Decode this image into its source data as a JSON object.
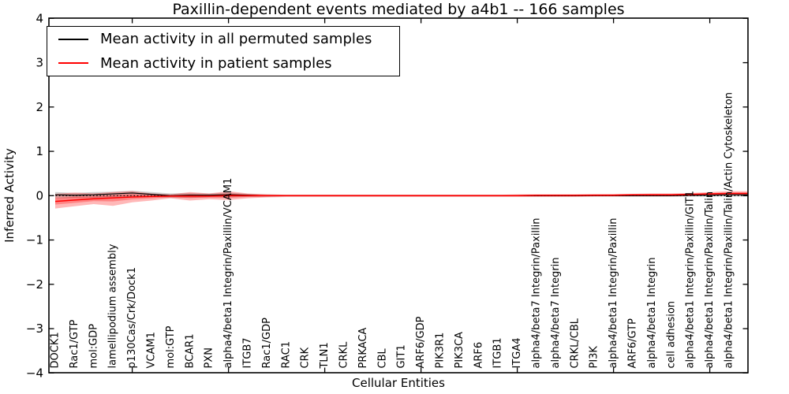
{
  "title": "Paxillin-dependent events mediated by a4b1 -- 166 samples",
  "chart_data": {
    "type": "line",
    "title": "Paxillin-dependent events mediated by a4b1 -- 166 samples",
    "xlabel": "Cellular Entities",
    "ylabel": "Inferred Activity",
    "ylim": [
      -4,
      4
    ],
    "grid": false,
    "legend_position": "upper left",
    "zero_line": {
      "style": "dotted",
      "color": "#000000",
      "y": 0
    },
    "yticks": {
      "values": [
        4,
        3,
        2,
        1,
        0,
        -1,
        -2,
        -3,
        -4
      ],
      "labels": [
        "4",
        "3",
        "2",
        "1",
        "0",
        "−1",
        "−2",
        "−3",
        "−4"
      ]
    },
    "xticks_major_values": [
      5,
      10,
      15,
      20,
      25,
      30,
      35
    ],
    "categories": [
      "DOCK1",
      "Rac1/GTP",
      "mol:GDP",
      "lamellipodium assembly",
      "p130Cas/Crk/Dock1",
      "VCAM1",
      "mol:GTP",
      "BCAR1",
      "PXN",
      "alpha4/beta1 Integrin/Paxillin/VCAM1",
      "ITGB7",
      "Rac1/GDP",
      "RAC1",
      "CRK",
      "TLN1",
      "CRKL",
      "PRKACA",
      "CBL",
      "GIT1",
      "ARF6/GDP",
      "PIK3R1",
      "PIK3CA",
      "ARF6",
      "ITGB1",
      "ITGA4",
      "alpha4/beta7 Integrin/Paxillin",
      "alpha4/beta7 Integrin",
      "CRKL/CBL",
      "PI3K",
      "alpha4/beta1 Integrin/Paxillin",
      "ARF6/GTP",
      "alpha4/beta1 Integrin",
      "cell adhesion",
      "alpha4/beta1 Integrin/Paxillin/GIT1",
      "alpha4/beta1 Integrin/Paxillin/Talin",
      "alpha4/beta1 Integrin/Paxillin/Talin/Actin Cytoskeleton"
    ],
    "series": [
      {
        "name": "Mean activity in all permuted samples",
        "color": "#000000",
        "line_width": 1.2,
        "band_color": "rgba(128,128,128,0.38)",
        "values": [
          0.02,
          0.01,
          0.02,
          0.04,
          0.06,
          0.03,
          0.0,
          0.01,
          0.01,
          0.02,
          0.01,
          0.0,
          0.0,
          0.0,
          0.0,
          0.0,
          0.0,
          0.0,
          0.0,
          0.0,
          0.0,
          0.0,
          0.0,
          0.0,
          0.0,
          0.0,
          0.0,
          0.0,
          0.0,
          0.0,
          0.0,
          0.0,
          0.0,
          0.01,
          0.01,
          0.02
        ],
        "band_upper": [
          0.08,
          0.06,
          0.08,
          0.09,
          0.11,
          0.08,
          0.05,
          0.06,
          0.05,
          0.07,
          0.04,
          0.03,
          0.02,
          0.02,
          0.02,
          0.02,
          0.02,
          0.02,
          0.02,
          0.02,
          0.02,
          0.02,
          0.02,
          0.02,
          0.02,
          0.02,
          0.02,
          0.02,
          0.02,
          0.02,
          0.02,
          0.02,
          0.02,
          0.03,
          0.03,
          0.04
        ],
        "band_lower": [
          -0.06,
          -0.05,
          -0.05,
          -0.03,
          -0.02,
          -0.03,
          -0.05,
          -0.05,
          -0.04,
          -0.04,
          -0.03,
          -0.03,
          -0.02,
          -0.02,
          -0.02,
          -0.02,
          -0.02,
          -0.02,
          -0.02,
          -0.02,
          -0.02,
          -0.02,
          -0.02,
          -0.02,
          -0.02,
          -0.02,
          -0.02,
          -0.02,
          -0.02,
          -0.02,
          -0.02,
          -0.02,
          -0.02,
          -0.02,
          -0.02,
          -0.02
        ]
      },
      {
        "name": "Mean activity in patient samples",
        "color": "#ff0000",
        "line_width": 1.5,
        "band_color": "rgba(255,0,0,0.28)",
        "values": [
          -0.13,
          -0.1,
          -0.07,
          -0.05,
          -0.03,
          -0.02,
          -0.01,
          -0.01,
          -0.01,
          0.0,
          0.0,
          0.0,
          0.0,
          0.0,
          0.0,
          0.0,
          0.0,
          0.0,
          0.0,
          0.0,
          0.0,
          0.0,
          0.0,
          0.0,
          0.0,
          0.01,
          0.01,
          0.01,
          0.01,
          0.01,
          0.02,
          0.02,
          0.02,
          0.03,
          0.04,
          0.05
        ],
        "band_upper": [
          0.04,
          0.07,
          0.05,
          0.08,
          0.1,
          0.05,
          0.03,
          0.08,
          0.05,
          0.1,
          0.05,
          0.03,
          0.02,
          0.02,
          0.02,
          0.02,
          0.02,
          0.02,
          0.02,
          0.02,
          0.02,
          0.02,
          0.02,
          0.02,
          0.03,
          0.03,
          0.03,
          0.03,
          0.04,
          0.04,
          0.04,
          0.05,
          0.05,
          0.06,
          0.08,
          0.1
        ],
        "band_lower": [
          -0.29,
          -0.24,
          -0.19,
          -0.23,
          -0.15,
          -0.11,
          -0.06,
          -0.11,
          -0.08,
          -0.1,
          -0.06,
          -0.04,
          -0.03,
          -0.03,
          -0.03,
          -0.03,
          -0.03,
          -0.03,
          -0.03,
          -0.03,
          -0.03,
          -0.03,
          -0.03,
          -0.03,
          -0.03,
          -0.03,
          -0.03,
          -0.03,
          -0.02,
          -0.02,
          -0.02,
          -0.02,
          -0.02,
          -0.01,
          0.0,
          0.01
        ]
      }
    ]
  }
}
